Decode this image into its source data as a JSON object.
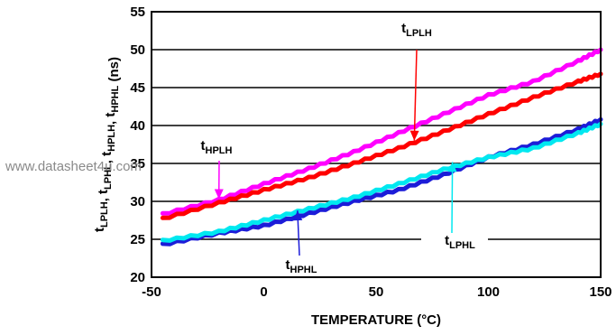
{
  "chart_data": {
    "type": "line",
    "xlabel": "TEMPERATURE (°C)",
    "ylabel": {
      "parts": [
        {
          "t": "t",
          "sub": "LPLH"
        },
        {
          "t": ", t",
          "sub": "LPHL"
        },
        {
          "t": ", t",
          "sub": "HPLH"
        },
        {
          "t": ", t",
          "sub": "HPHL"
        },
        {
          "t": " (ns)",
          "sub": ""
        }
      ]
    },
    "xlim": [
      -50,
      150
    ],
    "ylim": [
      20,
      55
    ],
    "xticks": [
      -50,
      0,
      50,
      100,
      150
    ],
    "yticks": [
      20,
      25,
      30,
      35,
      40,
      45,
      50,
      55
    ],
    "grid": "horizontal",
    "series": [
      {
        "name_main": "t",
        "name_sub": "HPLH",
        "color": "#ff00ff",
        "x": [
          -45,
          -20,
          0,
          20,
          40,
          60,
          80,
          100,
          120,
          140,
          150
        ],
        "y": [
          28.3,
          30.2,
          32.3,
          34.3,
          36.5,
          39.0,
          41.5,
          44.0,
          45.8,
          48.5,
          50.0
        ]
      },
      {
        "name_main": "t",
        "name_sub": "LPLH",
        "color": "#ff0000",
        "x": [
          -45,
          -20,
          0,
          20,
          40,
          60,
          80,
          100,
          120,
          140,
          150
        ],
        "y": [
          27.7,
          29.8,
          31.5,
          33.1,
          35.0,
          37.0,
          39.2,
          41.5,
          43.7,
          45.8,
          46.8
        ]
      },
      {
        "name_main": "t",
        "name_sub": "HPHL",
        "color": "#1c1cd8",
        "x": [
          -45,
          -20,
          0,
          20,
          40,
          60,
          80,
          100,
          120,
          140,
          150
        ],
        "y": [
          24.3,
          25.8,
          26.8,
          28.4,
          30.0,
          31.5,
          33.5,
          35.8,
          37.5,
          39.5,
          40.8
        ]
      },
      {
        "name_main": "t",
        "name_sub": "LPHL",
        "color": "#00e8f0",
        "x": [
          -45,
          -20,
          0,
          20,
          40,
          60,
          80,
          100,
          120,
          140,
          150
        ],
        "y": [
          24.8,
          26.0,
          27.5,
          29.0,
          30.5,
          32.3,
          34.2,
          35.8,
          37.0,
          39.0,
          40.2
        ]
      }
    ],
    "annotations": [
      {
        "target": "LPLH",
        "main": "t",
        "sub": "LPLH",
        "arrow_to_x": 67,
        "arrow_to_y": 38.0,
        "color": "#ff0000"
      },
      {
        "target": "HPLH",
        "main": "t",
        "sub": "HPLH",
        "arrow_to_x": -20,
        "arrow_to_y": 30.3,
        "color": "#ff00ff"
      },
      {
        "target": "HPHL",
        "main": "t",
        "sub": "HPHL",
        "arrow_to_x": 15,
        "arrow_to_y": 28.8,
        "color": "#1c1cd8"
      },
      {
        "target": "LPHL",
        "main": "t",
        "sub": "LPHL",
        "arrow_to_x": 84,
        "arrow_to_y": 35.2,
        "color": "#00e8f0"
      }
    ]
  },
  "watermark": "www.datasheet4u.com"
}
